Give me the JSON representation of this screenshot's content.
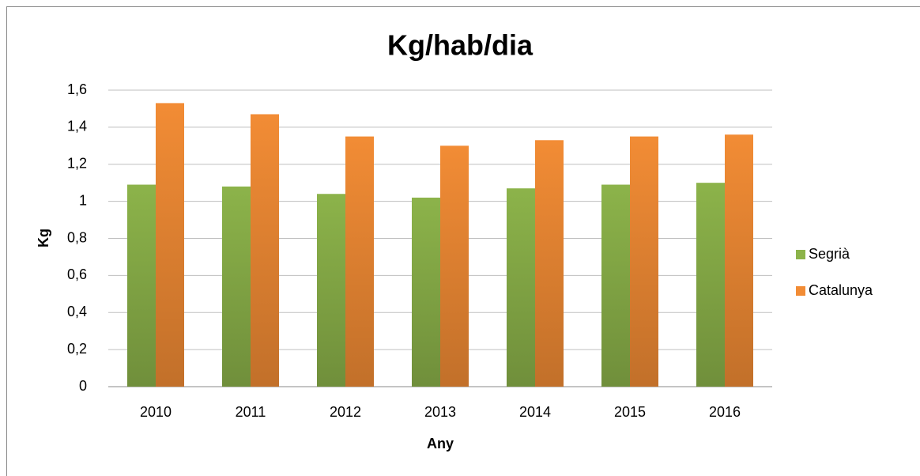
{
  "chart_data": {
    "type": "bar",
    "title": "Kg/hab/dia",
    "xlabel": "Any",
    "ylabel": "Kg",
    "categories": [
      "2010",
      "2011",
      "2012",
      "2013",
      "2014",
      "2015",
      "2016"
    ],
    "series": [
      {
        "name": "Segrià",
        "color": "#8cb34a",
        "values": [
          1.09,
          1.08,
          1.04,
          1.02,
          1.07,
          1.09,
          1.1
        ]
      },
      {
        "name": "Catalunya",
        "color": "#f28c35",
        "values": [
          1.53,
          1.47,
          1.35,
          1.3,
          1.33,
          1.35,
          1.36
        ]
      }
    ],
    "ylim": [
      0,
      1.6
    ],
    "yticks": [
      0,
      {
        "value": 0.2,
        "label": "0,2"
      },
      {
        "value": 0.4,
        "label": "0,4"
      },
      {
        "value": 0.6,
        "label": "0,6"
      },
      {
        "value": 0.8,
        "label": "0,8"
      },
      1,
      {
        "value": 1.2,
        "label": "1,2"
      },
      {
        "value": 1.4,
        "label": "1,4"
      },
      {
        "value": 1.6,
        "label": "1,6"
      }
    ],
    "grid": true,
    "legend": "right"
  }
}
